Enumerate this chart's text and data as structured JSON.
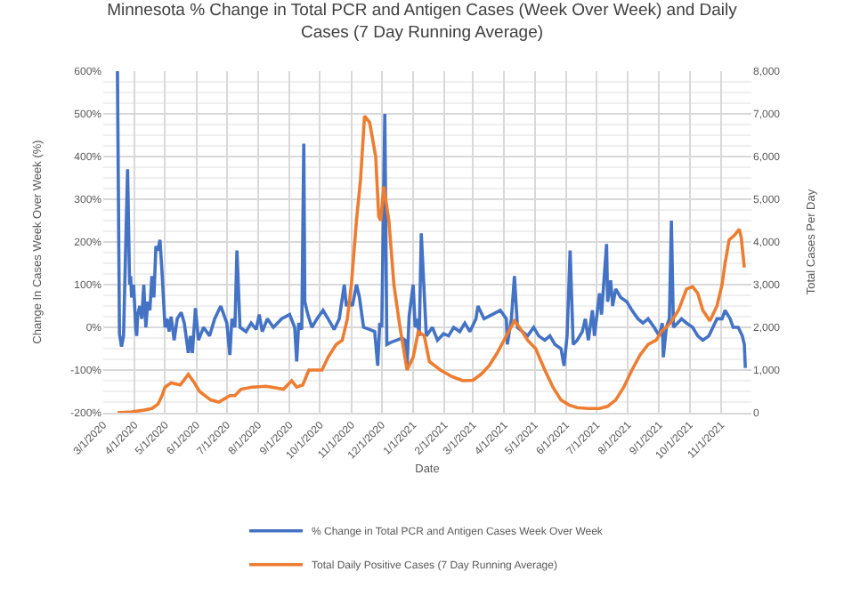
{
  "chart_data": {
    "type": "line",
    "title": "Minnesota % Change in Total PCR and Antigen Cases (Week Over Week) and Daily Cases (7 Day Running Average)",
    "xlabel": "Date",
    "ylabel": "Change In Cases Week Over Week (%)",
    "y2label": "Total Cases Per Day",
    "xlim": [
      "2020-03-01",
      "2021-12-01"
    ],
    "xticks": [
      {
        "value": "2020-03-01",
        "label": "3/1/2020"
      },
      {
        "value": "2020-04-01",
        "label": "4/1/2020"
      },
      {
        "value": "2020-05-01",
        "label": "5/1/2020"
      },
      {
        "value": "2020-06-01",
        "label": "6/1/2020"
      },
      {
        "value": "2020-07-01",
        "label": "7/1/2020"
      },
      {
        "value": "2020-08-01",
        "label": "8/1/2020"
      },
      {
        "value": "2020-09-01",
        "label": "9/1/2020"
      },
      {
        "value": "2020-10-01",
        "label": "10/1/2020"
      },
      {
        "value": "2020-11-01",
        "label": "11/1/2020"
      },
      {
        "value": "2020-12-01",
        "label": "12/1/2020"
      },
      {
        "value": "2021-01-01",
        "label": "1/1/2021"
      },
      {
        "value": "2021-02-01",
        "label": "2/1/2021"
      },
      {
        "value": "2021-03-01",
        "label": "3/1/2021"
      },
      {
        "value": "2021-04-01",
        "label": "4/1/2021"
      },
      {
        "value": "2021-05-01",
        "label": "5/1/2021"
      },
      {
        "value": "2021-06-01",
        "label": "6/1/2021"
      },
      {
        "value": "2021-07-01",
        "label": "7/1/2021"
      },
      {
        "value": "2021-08-01",
        "label": "8/1/2021"
      },
      {
        "value": "2021-09-01",
        "label": "9/1/2021"
      },
      {
        "value": "2021-10-01",
        "label": "10/1/2021"
      },
      {
        "value": "2021-11-01",
        "label": "11/1/2021"
      }
    ],
    "ylim": [
      -200,
      600
    ],
    "yticks": [
      {
        "value": -200,
        "label": "-200%"
      },
      {
        "value": -100,
        "label": "-100%"
      },
      {
        "value": 0,
        "label": "0%"
      },
      {
        "value": 100,
        "label": "100%"
      },
      {
        "value": 200,
        "label": "200%"
      },
      {
        "value": 300,
        "label": "300%"
      },
      {
        "value": 400,
        "label": "400%"
      },
      {
        "value": 500,
        "label": "500%"
      },
      {
        "value": 600,
        "label": "600%"
      }
    ],
    "y2lim": [
      0,
      8000
    ],
    "y2ticks": [
      0,
      {
        "value": 1000,
        "label": "1,000"
      },
      {
        "value": 2000,
        "label": "2,000"
      },
      {
        "value": 3000,
        "label": "3,000"
      },
      {
        "value": 4000,
        "label": "4,000"
      },
      {
        "value": 5000,
        "label": "5,000"
      },
      {
        "value": 6000,
        "label": "6,000"
      },
      {
        "value": 7000,
        "label": "7,000"
      },
      {
        "value": 8000,
        "label": "8,000"
      }
    ],
    "grid": true,
    "legend": "bottom",
    "marker": "none",
    "line_style": "solid",
    "series": [
      {
        "name": "% Change in Total PCR and Antigen Cases Week Over Week",
        "color": "#4472c4",
        "x": [
          "2020-03-15",
          "2020-03-17",
          "2020-03-19",
          "2020-03-21",
          "2020-03-25",
          "2020-03-27",
          "2020-03-28",
          "2020-03-29",
          "2020-03-31",
          "2020-04-02",
          "2020-04-03",
          "2020-04-04",
          "2020-04-06",
          "2020-04-08",
          "2020-04-10",
          "2020-04-12",
          "2020-04-14",
          "2020-04-16",
          "2020-04-18",
          "2020-04-20",
          "2020-04-22",
          "2020-04-24",
          "2020-04-26",
          "2020-04-28",
          "2020-05-01",
          "2020-05-03",
          "2020-05-05",
          "2020-05-07",
          "2020-05-10",
          "2020-05-13",
          "2020-05-17",
          "2020-05-20",
          "2020-05-24",
          "2020-05-26",
          "2020-05-28",
          "2020-05-31",
          "2020-06-03",
          "2020-06-08",
          "2020-06-14",
          "2020-06-19",
          "2020-06-25",
          "2020-06-28",
          "2020-07-01",
          "2020-07-04",
          "2020-07-06",
          "2020-07-09",
          "2020-07-11",
          "2020-07-14",
          "2020-07-20",
          "2020-07-25",
          "2020-07-30",
          "2020-08-02",
          "2020-08-05",
          "2020-08-10",
          "2020-08-16",
          "2020-08-24",
          "2020-09-01",
          "2020-09-06",
          "2020-09-08",
          "2020-09-10",
          "2020-09-13",
          "2020-09-15",
          "2020-09-16",
          "2020-09-19",
          "2020-09-23",
          "2020-09-28",
          "2020-10-04",
          "2020-10-09",
          "2020-10-15",
          "2020-10-20",
          "2020-10-25",
          "2020-10-27",
          "2020-10-30",
          "2020-11-02",
          "2020-11-06",
          "2020-11-09",
          "2020-11-13",
          "2020-11-19",
          "2020-11-24",
          "2020-11-27",
          "2020-11-29",
          "2020-12-01",
          "2020-12-04",
          "2020-12-06",
          "2020-12-10",
          "2020-12-16",
          "2020-12-21",
          "2020-12-24",
          "2020-12-26",
          "2020-12-28",
          "2021-01-01",
          "2021-01-03",
          "2021-01-05",
          "2021-01-07",
          "2021-01-09",
          "2021-01-14",
          "2021-01-20",
          "2021-01-25",
          "2021-01-31",
          "2021-02-05",
          "2021-02-10",
          "2021-02-16",
          "2021-02-21",
          "2021-02-26",
          "2021-03-04",
          "2021-03-06",
          "2021-03-12",
          "2021-03-20",
          "2021-03-28",
          "2021-04-03",
          "2021-04-04",
          "2021-04-08",
          "2021-04-11",
          "2021-04-14",
          "2021-04-19",
          "2021-04-24",
          "2021-04-30",
          "2021-05-05",
          "2021-05-11",
          "2021-05-16",
          "2021-05-21",
          "2021-05-27",
          "2021-05-30",
          "2021-06-02",
          "2021-06-05",
          "2021-06-08",
          "2021-06-12",
          "2021-06-17",
          "2021-06-20",
          "2021-06-23",
          "2021-06-27",
          "2021-06-29",
          "2021-07-04",
          "2021-07-06",
          "2021-07-11",
          "2021-07-12",
          "2021-07-15",
          "2021-07-17",
          "2021-07-20",
          "2021-07-25",
          "2021-07-31",
          "2021-08-05",
          "2021-08-11",
          "2021-08-16",
          "2021-08-21",
          "2021-08-27",
          "2021-09-01",
          "2021-09-04",
          "2021-09-05",
          "2021-09-08",
          "2021-09-11",
          "2021-09-13",
          "2021-09-15",
          "2021-09-19",
          "2021-09-23",
          "2021-09-28",
          "2021-10-04",
          "2021-10-09",
          "2021-10-14",
          "2021-10-20",
          "2021-10-28",
          "2021-11-02",
          "2021-11-05",
          "2021-11-10",
          "2021-11-13",
          "2021-11-18",
          "2021-11-22",
          "2021-11-24",
          "2021-11-25"
        ],
        "values": [
          600,
          -15,
          -45,
          -20,
          370,
          100,
          120,
          70,
          100,
          0,
          -20,
          30,
          50,
          20,
          100,
          0,
          60,
          40,
          120,
          70,
          190,
          180,
          205,
          130,
          0,
          20,
          -10,
          25,
          -30,
          20,
          35,
          10,
          -60,
          -20,
          -60,
          45,
          -30,
          0,
          -20,
          20,
          50,
          30,
          10,
          -65,
          20,
          0,
          180,
          0,
          -10,
          10,
          -5,
          30,
          -10,
          20,
          0,
          20,
          30,
          0,
          -80,
          10,
          -5,
          430,
          60,
          30,
          0,
          20,
          40,
          20,
          -5,
          20,
          100,
          50,
          60,
          50,
          100,
          70,
          0,
          -5,
          -10,
          -90,
          10,
          0,
          500,
          -40,
          -35,
          -30,
          -25,
          -30,
          -90,
          25,
          100,
          0,
          20,
          -20,
          220,
          -20,
          0,
          -30,
          -15,
          -20,
          0,
          -10,
          10,
          -10,
          20,
          50,
          20,
          30,
          40,
          20,
          -40,
          20,
          120,
          0,
          -10,
          -20,
          0,
          -20,
          -30,
          -20,
          -40,
          -50,
          -90,
          -20,
          180,
          -40,
          -30,
          -10,
          20,
          -30,
          40,
          -20,
          80,
          30,
          195,
          60,
          110,
          50,
          90,
          70,
          60,
          40,
          20,
          10,
          20,
          0,
          -20,
          10,
          -70,
          0,
          20,
          250,
          0,
          10,
          20,
          10,
          0,
          -20,
          -30,
          -20,
          20,
          20,
          40,
          20,
          0,
          0,
          -20,
          -40,
          -95
        ]
      },
      {
        "name": "Total Daily Positive Cases (7 Day Running Average)",
        "color": "#ed7d31",
        "axis": "y2",
        "x": [
          "2020-03-15",
          "2020-03-29",
          "2020-04-10",
          "2020-04-18",
          "2020-04-24",
          "2020-04-28",
          "2020-05-01",
          "2020-05-07",
          "2020-05-16",
          "2020-05-24",
          "2020-05-30",
          "2020-06-04",
          "2020-06-15",
          "2020-06-23",
          "2020-07-04",
          "2020-07-09",
          "2020-07-15",
          "2020-07-26",
          "2020-08-09",
          "2020-08-26",
          "2020-09-03",
          "2020-09-08",
          "2020-09-14",
          "2020-09-20",
          "2020-09-28",
          "2020-10-03",
          "2020-10-09",
          "2020-10-17",
          "2020-10-23",
          "2020-10-28",
          "2020-11-01",
          "2020-11-06",
          "2020-11-10",
          "2020-11-14",
          "2020-11-19",
          "2020-11-25",
          "2020-11-28",
          "2020-11-30",
          "2020-12-03",
          "2020-12-08",
          "2020-12-13",
          "2020-12-19",
          "2020-12-26",
          "2021-01-01",
          "2021-01-06",
          "2021-01-12",
          "2021-01-17",
          "2021-01-28",
          "2021-02-08",
          "2021-02-19",
          "2021-03-01",
          "2021-03-09",
          "2021-03-17",
          "2021-03-25",
          "2021-04-03",
          "2021-04-11",
          "2021-04-16",
          "2021-04-24",
          "2021-05-02",
          "2021-05-11",
          "2021-05-19",
          "2021-05-27",
          "2021-06-04",
          "2021-06-12",
          "2021-06-23",
          "2021-07-04",
          "2021-07-12",
          "2021-07-20",
          "2021-07-28",
          "2021-08-05",
          "2021-08-13",
          "2021-08-21",
          "2021-08-29",
          "2021-09-03",
          "2021-09-12",
          "2021-09-20",
          "2021-09-28",
          "2021-10-04",
          "2021-10-09",
          "2021-10-14",
          "2021-10-21",
          "2021-10-28",
          "2021-11-02",
          "2021-11-05",
          "2021-11-09",
          "2021-11-14",
          "2021-11-19",
          "2021-11-21",
          "2021-11-24"
        ],
        "values": [
          0,
          20,
          60,
          100,
          200,
          400,
          600,
          700,
          650,
          900,
          700,
          500,
          300,
          250,
          400,
          400,
          550,
          600,
          620,
          550,
          750,
          600,
          650,
          1000,
          1000,
          1000,
          1300,
          1600,
          1700,
          2200,
          3000,
          4500,
          5450,
          6950,
          6800,
          6000,
          4600,
          4500,
          5300,
          4500,
          3000,
          2000,
          1000,
          1300,
          1900,
          1800,
          1200,
          1000,
          850,
          750,
          760,
          900,
          1100,
          1400,
          1800,
          2150,
          2000,
          1700,
          1500,
          1000,
          600,
          300,
          180,
          120,
          100,
          100,
          150,
          300,
          600,
          1000,
          1350,
          1600,
          1700,
          1900,
          2100,
          2400,
          2900,
          2950,
          2800,
          2400,
          2150,
          2500,
          3000,
          3500,
          4050,
          4150,
          4300,
          4100,
          3400
        ]
      }
    ]
  }
}
